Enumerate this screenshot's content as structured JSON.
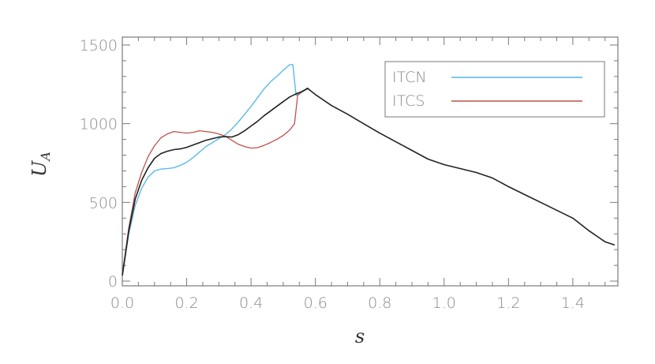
{
  "chart_data": {
    "type": "line",
    "title": "",
    "xlabel": "s",
    "ylabel": "U",
    "ylabel_subscript": "A",
    "xlim": [
      0.0,
      1.54
    ],
    "ylim": [
      -30,
      1550
    ],
    "x_ticks": [
      0.0,
      0.2,
      0.4,
      0.6,
      0.8,
      1.0,
      1.2,
      1.4
    ],
    "x_tick_labels": [
      "0.0",
      "0.2",
      "0.4",
      "0.6",
      "0.8",
      "1.0",
      "1.2",
      "1.4"
    ],
    "y_ticks": [
      0,
      500,
      1000,
      1500
    ],
    "y_tick_labels": [
      "0",
      "500",
      "1000",
      "1500"
    ],
    "grid": false,
    "legend_position": "top-right",
    "series": [
      {
        "name": "ITCN",
        "color": "#4fb6e8",
        "x": [
          0.0,
          0.02,
          0.04,
          0.06,
          0.08,
          0.1,
          0.12,
          0.14,
          0.16,
          0.18,
          0.2,
          0.22,
          0.24,
          0.26,
          0.28,
          0.3,
          0.32,
          0.34,
          0.36,
          0.38,
          0.4,
          0.42,
          0.44,
          0.46,
          0.48,
          0.5,
          0.52,
          0.53,
          0.54,
          0.56,
          0.58
        ],
        "y": [
          30,
          300,
          480,
          590,
          660,
          700,
          712,
          715,
          720,
          735,
          755,
          785,
          820,
          855,
          880,
          905,
          930,
          965,
          1010,
          1060,
          1110,
          1165,
          1220,
          1265,
          1300,
          1340,
          1375,
          1375,
          1180,
          1210,
          1225
        ]
      },
      {
        "name": "ITCS",
        "color": "#c0504d",
        "x": [
          0.0,
          0.02,
          0.04,
          0.06,
          0.08,
          0.1,
          0.12,
          0.14,
          0.16,
          0.18,
          0.2,
          0.22,
          0.24,
          0.26,
          0.28,
          0.3,
          0.32,
          0.34,
          0.36,
          0.38,
          0.4,
          0.42,
          0.44,
          0.46,
          0.48,
          0.5,
          0.52,
          0.535,
          0.545,
          0.56,
          0.58
        ],
        "y": [
          40,
          340,
          560,
          690,
          790,
          860,
          910,
          935,
          950,
          945,
          940,
          945,
          955,
          950,
          945,
          935,
          920,
          895,
          870,
          855,
          845,
          848,
          862,
          880,
          900,
          925,
          960,
          1000,
          1180,
          1205,
          1225
        ]
      },
      {
        "name": "",
        "color": "#222222",
        "x": [
          0.0,
          0.02,
          0.04,
          0.06,
          0.08,
          0.1,
          0.12,
          0.14,
          0.16,
          0.18,
          0.2,
          0.22,
          0.24,
          0.26,
          0.28,
          0.3,
          0.32,
          0.34,
          0.36,
          0.38,
          0.4,
          0.42,
          0.44,
          0.46,
          0.48,
          0.5,
          0.52,
          0.54,
          0.56,
          0.575,
          0.6,
          0.65,
          0.7,
          0.75,
          0.8,
          0.85,
          0.9,
          0.95,
          1.0,
          1.05,
          1.1,
          1.15,
          1.2,
          1.25,
          1.3,
          1.35,
          1.4,
          1.45,
          1.5,
          1.53
        ],
        "y": [
          35,
          320,
          520,
          640,
          720,
          780,
          810,
          825,
          835,
          840,
          850,
          865,
          880,
          895,
          905,
          915,
          918,
          915,
          930,
          955,
          985,
          1015,
          1050,
          1080,
          1110,
          1140,
          1170,
          1190,
          1205,
          1225,
          1185,
          1115,
          1060,
          1000,
          940,
          885,
          830,
          775,
          740,
          715,
          690,
          655,
          600,
          550,
          500,
          450,
          400,
          320,
          250,
          230
        ]
      }
    ]
  }
}
